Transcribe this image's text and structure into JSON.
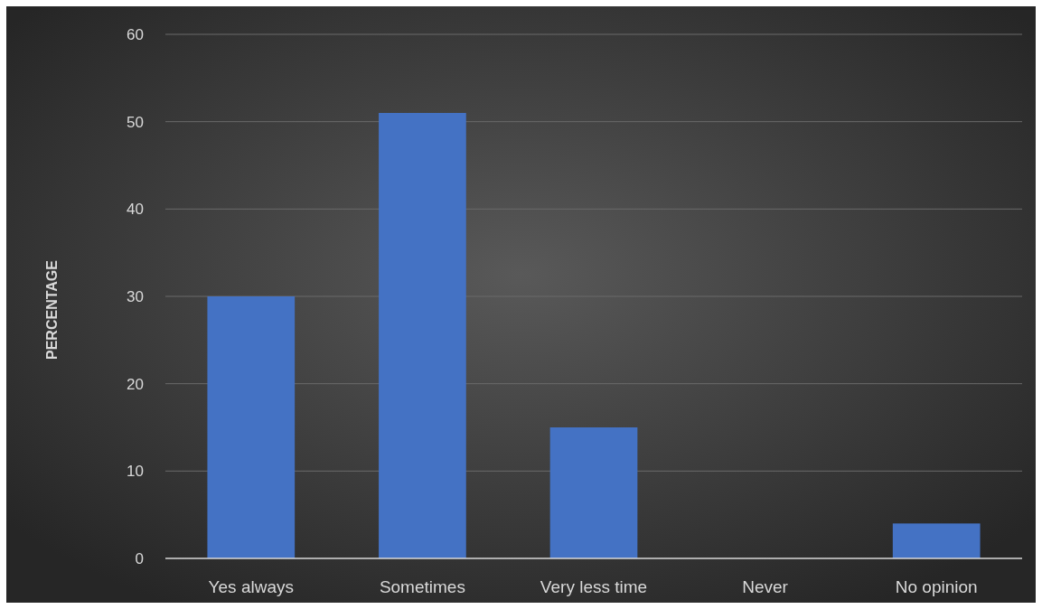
{
  "chart_data": {
    "type": "bar",
    "ylabel": "PERCENTAGE",
    "categories": [
      "Yes always",
      "Sometimes",
      "Very less time",
      "Never",
      "No opinion"
    ],
    "values": [
      30,
      51,
      15,
      0,
      4
    ],
    "color": "#4472c4",
    "ylim": [
      0,
      60
    ],
    "yticks": [
      0,
      10,
      20,
      30,
      40,
      50,
      60
    ],
    "grid": "y"
  }
}
